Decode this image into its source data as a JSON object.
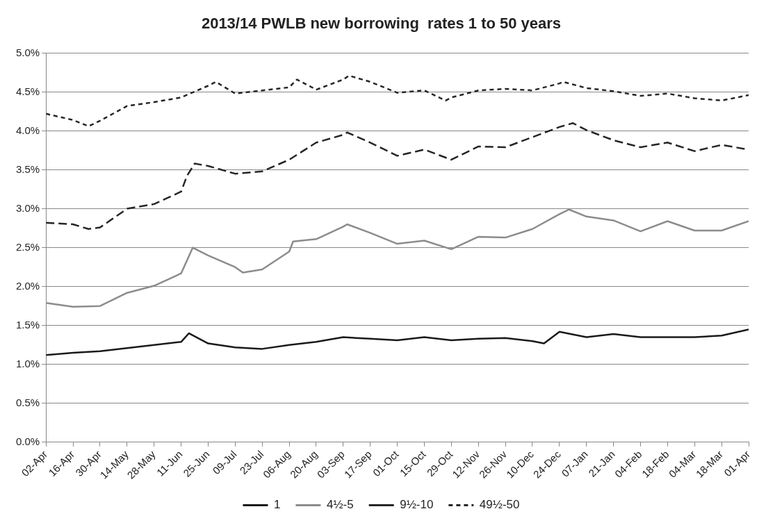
{
  "chart_data": {
    "type": "line",
    "title": "2013/14 PWLB new borrowing  rates 1 to 50 years",
    "xlim": [
      "2013-04-02",
      "2014-04-01"
    ],
    "xticks": [
      {
        "value": "2013-04-02",
        "label": "02-Apr"
      },
      {
        "value": "2013-04-16",
        "label": "16-Apr"
      },
      {
        "value": "2013-04-30",
        "label": "30-Apr"
      },
      {
        "value": "2013-05-14",
        "label": "14-May"
      },
      {
        "value": "2013-05-28",
        "label": "28-May"
      },
      {
        "value": "2013-06-11",
        "label": "11-Jun"
      },
      {
        "value": "2013-06-25",
        "label": "25-Jun"
      },
      {
        "value": "2013-07-09",
        "label": "09-Jul"
      },
      {
        "value": "2013-07-23",
        "label": "23-Jul"
      },
      {
        "value": "2013-08-06",
        "label": "06-Aug"
      },
      {
        "value": "2013-08-20",
        "label": "20-Aug"
      },
      {
        "value": "2013-09-03",
        "label": "03-Sep"
      },
      {
        "value": "2013-09-17",
        "label": "17-Sep"
      },
      {
        "value": "2013-10-01",
        "label": "01-Oct"
      },
      {
        "value": "2013-10-15",
        "label": "15-Oct"
      },
      {
        "value": "2013-10-29",
        "label": "29-Oct"
      },
      {
        "value": "2013-11-12",
        "label": "12-Nov"
      },
      {
        "value": "2013-11-26",
        "label": "26-Nov"
      },
      {
        "value": "2013-12-10",
        "label": "10-Dec"
      },
      {
        "value": "2013-12-24",
        "label": "24-Dec"
      },
      {
        "value": "2014-01-07",
        "label": "07-Jan"
      },
      {
        "value": "2014-01-21",
        "label": "21-Jan"
      },
      {
        "value": "2014-02-04",
        "label": "04-Feb"
      },
      {
        "value": "2014-02-18",
        "label": "18-Feb"
      },
      {
        "value": "2014-03-04",
        "label": "04-Mar"
      },
      {
        "value": "2014-03-18",
        "label": "18-Mar"
      },
      {
        "value": "2014-04-01",
        "label": "01-Apr"
      }
    ],
    "ylim": [
      0,
      5
    ],
    "yticks": [
      {
        "value": 0,
        "label": "0.0%"
      },
      {
        "value": 0.5,
        "label": "0.5%"
      },
      {
        "value": 1,
        "label": "1.0%"
      },
      {
        "value": 1.5,
        "label": "1.5%"
      },
      {
        "value": 2,
        "label": "2.0%"
      },
      {
        "value": 2.5,
        "label": "2.5%"
      },
      {
        "value": 3,
        "label": "3.0%"
      },
      {
        "value": 3.5,
        "label": "3.5%"
      },
      {
        "value": 4,
        "label": "4.0%"
      },
      {
        "value": 4.5,
        "label": "4.5%"
      },
      {
        "value": 5,
        "label": "5.0%"
      }
    ],
    "grid": "y",
    "legend": "bottom",
    "marker": "none",
    "series": [
      {
        "name": "1",
        "color": "#1a1a1a",
        "line_style": "solid",
        "x": [
          "2013-04-02",
          "2013-04-16",
          "2013-04-30",
          "2013-05-14",
          "2013-05-28",
          "2013-06-11",
          "2013-06-15",
          "2013-06-25",
          "2013-07-09",
          "2013-07-23",
          "2013-08-06",
          "2013-08-20",
          "2013-09-03",
          "2013-09-17",
          "2013-10-01",
          "2013-10-15",
          "2013-10-29",
          "2013-11-12",
          "2013-11-26",
          "2013-12-10",
          "2013-12-16",
          "2013-12-24",
          "2014-01-07",
          "2014-01-21",
          "2014-02-04",
          "2014-02-18",
          "2014-03-04",
          "2014-03-18",
          "2014-04-01"
        ],
        "values": [
          1.12,
          1.15,
          1.17,
          1.21,
          1.25,
          1.29,
          1.4,
          1.27,
          1.22,
          1.2,
          1.25,
          1.29,
          1.35,
          1.33,
          1.31,
          1.35,
          1.31,
          1.33,
          1.34,
          1.3,
          1.27,
          1.42,
          1.35,
          1.39,
          1.35,
          1.35,
          1.35,
          1.37,
          1.45
        ]
      },
      {
        "name": "4½-5",
        "color": "#8c8c8c",
        "line_style": "solid",
        "x": [
          "2013-04-02",
          "2013-04-16",
          "2013-04-30",
          "2013-05-14",
          "2013-05-28",
          "2013-06-11",
          "2013-06-17",
          "2013-06-25",
          "2013-07-09",
          "2013-07-13",
          "2013-07-23",
          "2013-08-06",
          "2013-08-08",
          "2013-08-20",
          "2013-09-03",
          "2013-09-05",
          "2013-09-17",
          "2013-10-01",
          "2013-10-15",
          "2013-10-29",
          "2013-11-12",
          "2013-11-26",
          "2013-12-10",
          "2013-12-24",
          "2013-12-29",
          "2014-01-07",
          "2014-01-21",
          "2014-02-04",
          "2014-02-18",
          "2014-03-04",
          "2014-03-18",
          "2014-04-01"
        ],
        "values": [
          1.79,
          1.74,
          1.75,
          1.92,
          2.01,
          2.17,
          2.5,
          2.4,
          2.25,
          2.18,
          2.22,
          2.45,
          2.58,
          2.61,
          2.77,
          2.8,
          2.69,
          2.55,
          2.59,
          2.48,
          2.64,
          2.63,
          2.74,
          2.93,
          2.99,
          2.9,
          2.85,
          2.71,
          2.84,
          2.72,
          2.72,
          2.84
        ]
      },
      {
        "name": "9½-10",
        "color": "#262626",
        "line_style": "dashed",
        "x": [
          "2013-04-02",
          "2013-04-16",
          "2013-04-24",
          "2013-04-30",
          "2013-05-14",
          "2013-05-28",
          "2013-06-11",
          "2013-06-14",
          "2013-06-18",
          "2013-06-25",
          "2013-07-09",
          "2013-07-23",
          "2013-08-06",
          "2013-08-20",
          "2013-09-03",
          "2013-09-05",
          "2013-09-17",
          "2013-10-01",
          "2013-10-15",
          "2013-10-29",
          "2013-11-12",
          "2013-11-26",
          "2013-12-10",
          "2013-12-24",
          "2013-12-31",
          "2014-01-07",
          "2014-01-21",
          "2014-02-04",
          "2014-02-18",
          "2014-03-04",
          "2014-03-18",
          "2014-04-01"
        ],
        "values": [
          2.82,
          2.8,
          2.74,
          2.76,
          3.0,
          3.06,
          3.22,
          3.42,
          3.58,
          3.55,
          3.45,
          3.48,
          3.63,
          3.85,
          3.95,
          3.98,
          3.85,
          3.68,
          3.76,
          3.63,
          3.8,
          3.79,
          3.92,
          4.05,
          4.1,
          4.01,
          3.88,
          3.79,
          3.85,
          3.74,
          3.82,
          3.76
        ]
      },
      {
        "name": "49½-50",
        "color": "#262626",
        "line_style": "dotted",
        "x": [
          "2013-04-02",
          "2013-04-16",
          "2013-04-24",
          "2013-04-30",
          "2013-05-14",
          "2013-05-28",
          "2013-06-11",
          "2013-06-25",
          "2013-06-29",
          "2013-07-09",
          "2013-07-23",
          "2013-08-06",
          "2013-08-10",
          "2013-08-20",
          "2013-09-03",
          "2013-09-06",
          "2013-09-17",
          "2013-10-01",
          "2013-10-15",
          "2013-10-26",
          "2013-10-29",
          "2013-11-12",
          "2013-11-26",
          "2013-12-10",
          "2013-12-24",
          "2013-12-26",
          "2014-01-07",
          "2014-01-21",
          "2014-02-04",
          "2014-02-18",
          "2014-03-04",
          "2014-03-18",
          "2014-04-01"
        ],
        "values": [
          4.22,
          4.14,
          4.06,
          4.13,
          4.32,
          4.37,
          4.43,
          4.58,
          4.63,
          4.48,
          4.52,
          4.56,
          4.66,
          4.53,
          4.66,
          4.71,
          4.63,
          4.49,
          4.52,
          4.39,
          4.43,
          4.52,
          4.54,
          4.52,
          4.61,
          4.63,
          4.55,
          4.51,
          4.45,
          4.48,
          4.42,
          4.39,
          4.46
        ]
      }
    ]
  }
}
